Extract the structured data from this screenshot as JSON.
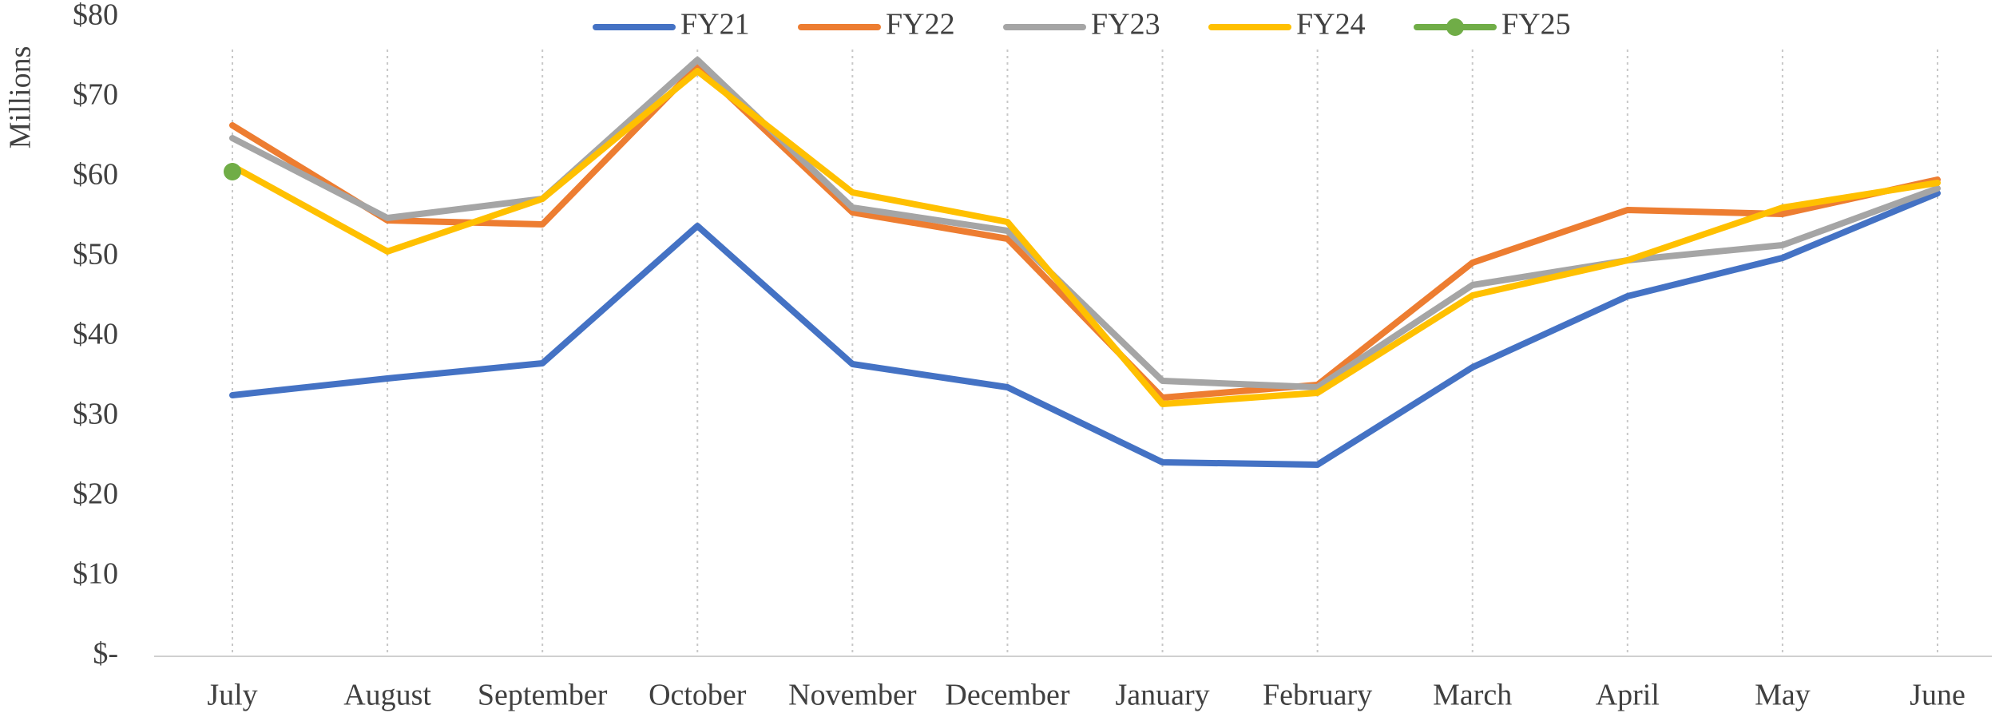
{
  "chart_data": {
    "type": "line",
    "y_label": "Millions",
    "categories": [
      "July",
      "August",
      "September",
      "October",
      "November",
      "December",
      "January",
      "February",
      "March",
      "April",
      "May",
      "June"
    ],
    "series": [
      {
        "name": "FY21",
        "color": "#4472c4",
        "values": [
          32.7,
          34.8,
          36.7,
          53.9,
          36.6,
          33.7,
          24.3,
          24.0,
          36.2,
          45.1,
          49.9,
          58.0
        ]
      },
      {
        "name": "FY22",
        "color": "#ed7d31",
        "values": [
          66.5,
          54.6,
          54.1,
          73.9,
          55.6,
          52.3,
          32.4,
          34.0,
          49.3,
          55.9,
          55.4,
          59.7
        ]
      },
      {
        "name": "FY23",
        "color": "#a5a5a5",
        "values": [
          64.9,
          54.9,
          57.3,
          74.7,
          56.2,
          53.3,
          34.5,
          33.7,
          46.5,
          49.6,
          51.5,
          58.6
        ]
      },
      {
        "name": "FY24",
        "color": "#ffc000",
        "values": [
          61.4,
          50.7,
          57.3,
          73.3,
          58.1,
          54.4,
          31.6,
          33.0,
          45.2,
          49.6,
          56.2,
          59.3
        ]
      },
      {
        "name": "FY25",
        "color": "#70ad47",
        "marker": "circle",
        "values": [
          60.7,
          null,
          null,
          null,
          null,
          null,
          null,
          null,
          null,
          null,
          null,
          null
        ]
      }
    ],
    "ylim": [
      0,
      80
    ],
    "yticks": [
      {
        "value": 0,
        "label": "$-"
      },
      {
        "value": 10,
        "label": "$10"
      },
      {
        "value": 20,
        "label": "$20"
      },
      {
        "value": 30,
        "label": "$30"
      },
      {
        "value": 40,
        "label": "$40"
      },
      {
        "value": 50,
        "label": "$50"
      },
      {
        "value": 60,
        "label": "$60"
      },
      {
        "value": 70,
        "label": "$70"
      },
      {
        "value": 80,
        "label": "$80"
      }
    ],
    "legend": "top"
  }
}
